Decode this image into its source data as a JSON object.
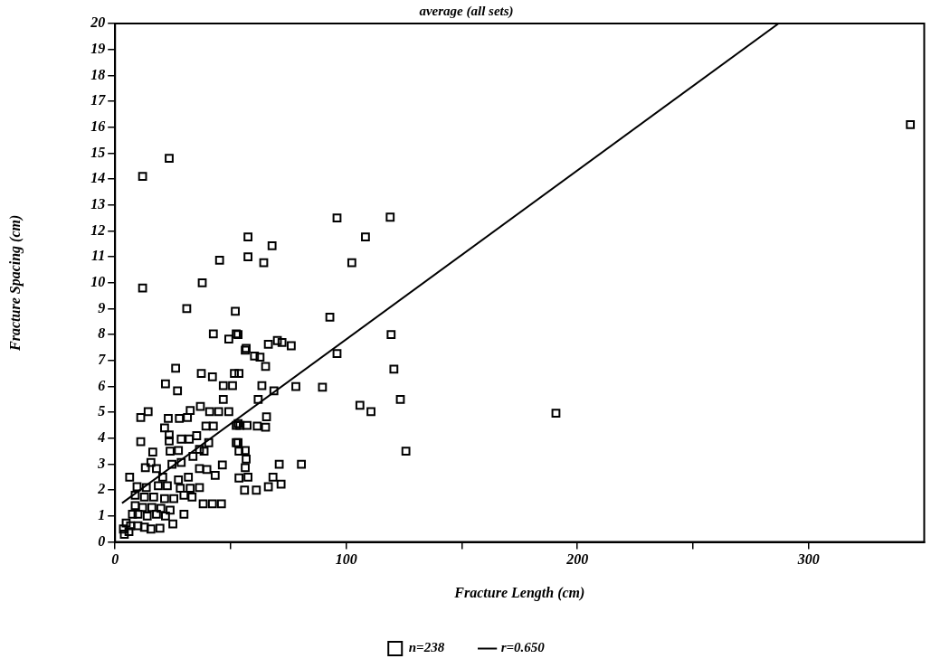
{
  "chart_data": {
    "type": "scatter",
    "title": "average (all sets)",
    "xlabel": "Fracture Length (cm)",
    "ylabel": "Fracture Spacing (cm)",
    "xlim": [
      0,
      350
    ],
    "xticks": [
      0,
      {
        "value": 50,
        "label": null
      },
      100,
      {
        "value": 150,
        "label": null
      },
      200,
      {
        "value": 250,
        "label": null
      },
      300
    ],
    "ylim": [
      0,
      20
    ],
    "yticks": [
      0,
      1,
      2,
      3,
      4,
      5,
      6,
      7,
      8,
      9,
      10,
      11,
      12,
      13,
      14,
      15,
      16,
      17,
      18,
      19,
      20
    ],
    "grid": false,
    "legend": "bottom",
    "marker": "square",
    "series": [
      {
        "name": "n=238",
        "color": "#000000",
        "x": [
          344,
          190.7,
          23.4,
          11.9,
          57.5,
          67.9,
          45.2,
          57.5,
          64.3,
          11.9,
          37.7,
          31,
          52,
          42.5,
          49.2,
          52.4,
          56.7,
          66.3,
          70.2,
          72.2,
          96,
          119,
          108.3,
          102.4,
          92.9,
          119.4,
          96,
          120.6,
          123.4,
          105.9,
          110.7,
          125.8,
          89.7,
          78.2,
          76.2,
          56.3,
          60.3,
          62.7,
          65.1,
          53.2,
          53.6,
          63.5,
          68.7,
          61.9,
          65.5,
          57.1,
          61.5,
          65.1,
          53.2,
          53.2,
          53.6,
          56.3,
          56.7,
          56.3,
          57.5,
          53.6,
          71,
          80.6,
          68.3,
          71.8,
          66.3,
          61.1,
          56,
          26.2,
          21.8,
          27,
          37.3,
          42.1,
          46.8,
          50.8,
          51.6,
          46.8,
          36.9,
          32.5,
          40.9,
          44.8,
          49.2,
          14.3,
          11.1,
          23,
          27.8,
          31.3,
          39.3,
          42.5,
          21.4,
          52.4,
          11.1,
          23.4,
          23.4,
          28.6,
          32.1,
          35.3,
          40.5,
          16.3,
          23.8,
          27.4,
          33.7,
          36.5,
          38.5,
          15.5,
          13.1,
          17.9,
          24.6,
          28.6,
          46.4,
          36.5,
          39.7,
          43.3,
          6.3,
          20.6,
          27.4,
          31.7,
          9.5,
          13.5,
          18.7,
          22.6,
          28.2,
          32.5,
          36.5,
          8.7,
          12.7,
          16.7,
          21.4,
          25.4,
          29.8,
          33.3,
          38.1,
          42.1,
          46,
          8.7,
          11.9,
          15.9,
          19.8,
          23.8,
          29.8,
          7.5,
          9.9,
          13.9,
          17.9,
          21.8,
          25,
          4.8,
          6.7,
          9.9,
          12.7,
          15.5,
          19.4,
          3.6,
          6,
          4,
          54,
          52.4
        ],
        "values": [
          16.1,
          4.97,
          14.8,
          14.1,
          11.77,
          11.43,
          10.87,
          11,
          10.77,
          9.8,
          10,
          9,
          8.9,
          8.03,
          7.83,
          8.03,
          7.47,
          7.63,
          7.77,
          7.7,
          12.5,
          12.53,
          11.77,
          10.77,
          8.67,
          8,
          7.27,
          6.67,
          5.5,
          5.27,
          5.03,
          3.5,
          5.97,
          6,
          7.57,
          7.4,
          7.17,
          7.13,
          6.77,
          8,
          6.5,
          6.03,
          5.83,
          5.5,
          4.83,
          4.5,
          4.47,
          4.43,
          4.57,
          3.83,
          3.5,
          3.53,
          3.2,
          2.87,
          2.5,
          2.47,
          3,
          3,
          2.5,
          2.23,
          2.13,
          2,
          2,
          6.7,
          6.1,
          5.83,
          6.5,
          6.37,
          6.03,
          6.03,
          6.5,
          5.5,
          5.23,
          5.07,
          5.03,
          5.03,
          5.03,
          5.03,
          4.8,
          4.77,
          4.77,
          4.8,
          4.47,
          4.47,
          4.4,
          4.5,
          3.87,
          4.13,
          3.9,
          3.97,
          3.97,
          4.1,
          3.83,
          3.47,
          3.5,
          3.53,
          3.3,
          3.57,
          3.5,
          3.07,
          2.87,
          2.83,
          3,
          3.07,
          2.97,
          2.83,
          2.8,
          2.57,
          2.5,
          2.5,
          2.4,
          2.5,
          2.13,
          2.1,
          2.17,
          2.17,
          2.07,
          2.07,
          2.1,
          1.8,
          1.73,
          1.73,
          1.67,
          1.67,
          1.8,
          1.73,
          1.47,
          1.47,
          1.47,
          1.4,
          1.33,
          1.33,
          1.3,
          1.23,
          1.07,
          1.07,
          1.07,
          1,
          1.07,
          1,
          0.7,
          0.73,
          0.63,
          0.63,
          0.57,
          0.5,
          0.53,
          0.5,
          0.4,
          0.3,
          4.5,
          3.83
        ]
      },
      {
        "name": "r=0.650",
        "color": "#000000",
        "type": "line",
        "marker": "none",
        "line_style": "solid",
        "x": [
          3,
          287
        ],
        "values": [
          1.5,
          20
        ]
      }
    ]
  }
}
